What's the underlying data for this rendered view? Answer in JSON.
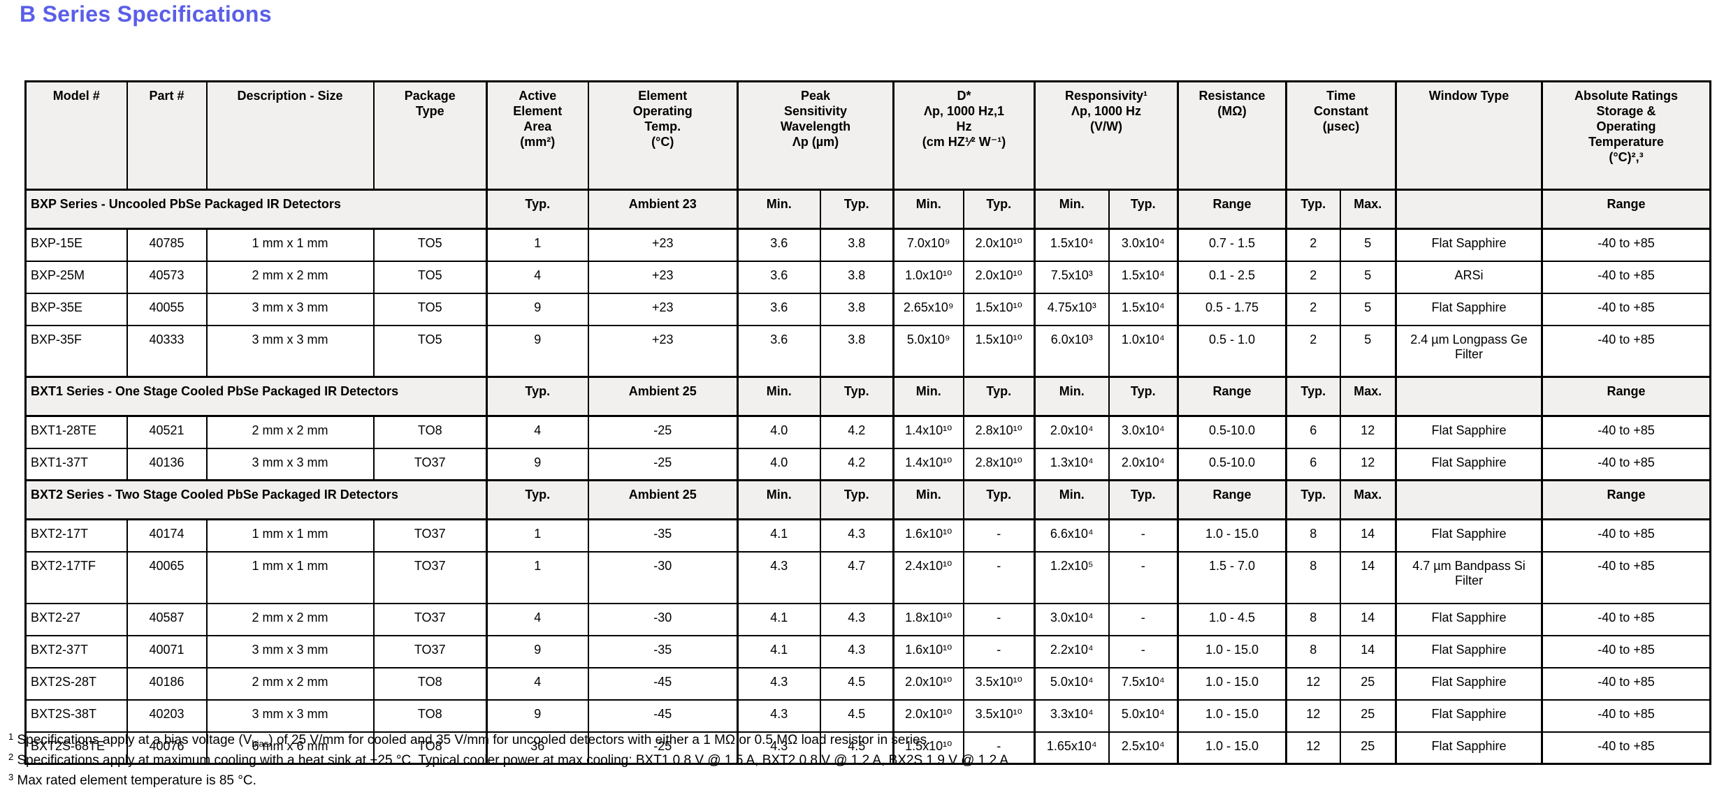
{
  "page_title": "B Series Specifications",
  "accent_color": "#5a5ee8",
  "header_bg_color": "#f1f0ee",
  "table": {
    "columns": [
      {
        "id": "model"
      },
      {
        "id": "part"
      },
      {
        "id": "description"
      },
      {
        "id": "package"
      },
      {
        "id": "active-area"
      },
      {
        "id": "operating-temp"
      },
      {
        "id": "peak-min"
      },
      {
        "id": "peak-typ"
      },
      {
        "id": "dstar-min"
      },
      {
        "id": "dstar-typ"
      },
      {
        "id": "resp-min"
      },
      {
        "id": "resp-typ"
      },
      {
        "id": "resistance"
      },
      {
        "id": "time-typ"
      },
      {
        "id": "time-max"
      },
      {
        "id": "window"
      },
      {
        "id": "ratings"
      }
    ],
    "header_cells": [
      {
        "lines": [
          "Model #"
        ],
        "span": 1
      },
      {
        "lines": [
          "Part #"
        ],
        "span": 1
      },
      {
        "lines": [
          "Description - Size"
        ],
        "span": 1
      },
      {
        "lines": [
          "Package",
          "Type"
        ],
        "span": 1
      },
      {
        "lines": [
          "Active",
          "Element",
          "Area",
          "(mm²)"
        ],
        "span": 1
      },
      {
        "lines": [
          "Element",
          "Operating",
          "Temp.",
          "(°C)"
        ],
        "span": 1
      },
      {
        "lines": [
          "Peak",
          "Sensitivity",
          "Wavelength",
          "Λp (µm)"
        ],
        "span": 2
      },
      {
        "lines": [
          "D*",
          "Λp, 1000 Hz,1",
          "Hz",
          "(cm HZ¹⁄² W⁻¹)"
        ],
        "span": 2
      },
      {
        "lines": [
          "Responsivity¹",
          "Λp, 1000 Hz",
          "(V/W)"
        ],
        "span": 2
      },
      {
        "lines": [
          "Resistance",
          "(MΩ)"
        ],
        "span": 1
      },
      {
        "lines": [
          "Time",
          "Constant",
          "(µsec)"
        ],
        "span": 2
      },
      {
        "lines": [
          "Window Type"
        ],
        "span": 1
      },
      {
        "lines": [
          "Absolute Ratings",
          "Storage &",
          "Operating",
          "Temperature",
          "(°C)²,³"
        ],
        "span": 1
      }
    ],
    "sections": [
      {
        "title": "BXP Series - Uncooled PbSe Packaged IR Detectors",
        "subheader": [
          "Typ.",
          "Ambient 23",
          "Min.",
          "Typ.",
          "Min.",
          "Typ.",
          "Min.",
          "Typ.",
          "Range",
          "Typ.",
          "Max.",
          "",
          "Range"
        ],
        "rows": [
          [
            "BXP-15E",
            "40785",
            "1 mm x 1 mm",
            "TO5",
            "1",
            "+23",
            "3.6",
            "3.8",
            "7.0x10⁹",
            "2.0x10¹⁰",
            "1.5x10⁴",
            "3.0x10⁴",
            "0.7 - 1.5",
            "2",
            "5",
            "Flat Sapphire",
            "-40 to +85"
          ],
          [
            "BXP-25M",
            "40573",
            "2 mm x 2 mm",
            "TO5",
            "4",
            "+23",
            "3.6",
            "3.8",
            "1.0x10¹⁰",
            "2.0x10¹⁰",
            "7.5x10³",
            "1.5x10⁴",
            "0.1 - 2.5",
            "2",
            "5",
            "ARSi",
            "-40 to +85"
          ],
          [
            "BXP-35E",
            "40055",
            "3 mm x 3 mm",
            "TO5",
            "9",
            "+23",
            "3.6",
            "3.8",
            "2.65x10⁹",
            "1.5x10¹⁰",
            "4.75x10³",
            "1.5x10⁴",
            "0.5 - 1.75",
            "2",
            "5",
            "Flat Sapphire",
            "-40 to +85"
          ],
          [
            "BXP-35F",
            "40333",
            "3 mm x 3 mm",
            "TO5",
            "9",
            "+23",
            "3.6",
            "3.8",
            "5.0x10⁹",
            "1.5x10¹⁰",
            "6.0x10³",
            "1.0x10⁴",
            "0.5 - 1.0",
            "2",
            "5",
            "2.4 µm Longpass Ge Filter",
            "-40 to +85"
          ]
        ]
      },
      {
        "title": "BXT1 Series - One Stage Cooled PbSe Packaged IR Detectors",
        "subheader": [
          "Typ.",
          "Ambient 25",
          "Min.",
          "Typ.",
          "Min.",
          "Typ.",
          "Min.",
          "Typ.",
          "Range",
          "Typ.",
          "Max.",
          "",
          "Range"
        ],
        "rows": [
          [
            "BXT1-28TE",
            "40521",
            "2 mm x 2 mm",
            "TO8",
            "4",
            "-25",
            "4.0",
            "4.2",
            "1.4x10¹⁰",
            "2.8x10¹⁰",
            "2.0x10⁴",
            "3.0x10⁴",
            "0.5-10.0",
            "6",
            "12",
            "Flat Sapphire",
            "-40 to +85"
          ],
          [
            "BXT1-37T",
            "40136",
            "3 mm x 3 mm",
            "TO37",
            "9",
            "-25",
            "4.0",
            "4.2",
            "1.4x10¹⁰",
            "2.8x10¹⁰",
            "1.3x10⁴",
            "2.0x10⁴",
            "0.5-10.0",
            "6",
            "12",
            "Flat Sapphire",
            "-40 to +85"
          ]
        ]
      },
      {
        "title": "BXT2 Series - Two Stage Cooled PbSe Packaged IR Detectors",
        "subheader": [
          "Typ.",
          "Ambient 25",
          "Min.",
          "Typ.",
          "Min.",
          "Typ.",
          "Min.",
          "Typ.",
          "Range",
          "Typ.",
          "Max.",
          "",
          "Range"
        ],
        "rows": [
          [
            "BXT2-17T",
            "40174",
            "1 mm x 1 mm",
            "TO37",
            "1",
            "-35",
            "4.1",
            "4.3",
            "1.6x10¹⁰",
            "-",
            "6.6x10⁴",
            "-",
            "1.0 - 15.0",
            "8",
            "14",
            "Flat Sapphire",
            "-40 to +85"
          ],
          [
            "BXT2-17TF",
            "40065",
            "1 mm x 1 mm",
            "TO37",
            "1",
            "-30",
            "4.3",
            "4.7",
            "2.4x10¹⁰",
            "-",
            "1.2x10⁵",
            "-",
            "1.5 - 7.0",
            "8",
            "14",
            "4.7 µm Bandpass Si Filter",
            "-40 to +85"
          ],
          [
            "BXT2-27",
            "40587",
            "2 mm x 2 mm",
            "TO37",
            "4",
            "-30",
            "4.1",
            "4.3",
            "1.8x10¹⁰",
            "-",
            "3.0x10⁴",
            "-",
            "1.0 - 4.5",
            "8",
            "14",
            "Flat Sapphire",
            "-40 to +85"
          ],
          [
            "BXT2-37T",
            "40071",
            "3 mm x 3 mm",
            "TO37",
            "9",
            "-35",
            "4.1",
            "4.3",
            "1.6x10¹⁰",
            "-",
            "2.2x10⁴",
            "-",
            "1.0 - 15.0",
            "8",
            "14",
            "Flat Sapphire",
            "-40 to +85"
          ],
          [
            "BXT2S-28T",
            "40186",
            "2 mm x 2 mm",
            "TO8",
            "4",
            "-45",
            "4.3",
            "4.5",
            "2.0x10¹⁰",
            "3.5x10¹⁰",
            "5.0x10⁴",
            "7.5x10⁴",
            "1.0 - 15.0",
            "12",
            "25",
            "Flat Sapphire",
            "-40 to +85"
          ],
          [
            "BXT2S-38T",
            "40203",
            "3 mm x 3 mm",
            "TO8",
            "9",
            "-45",
            "4.3",
            "4.5",
            "2.0x10¹⁰",
            "3.5x10¹⁰",
            "3.3x10⁴",
            "5.0x10⁴",
            "1.0 - 15.0",
            "12",
            "25",
            "Flat Sapphire",
            "-40 to +85"
          ],
          [
            "BXT2S-68TE",
            "40076",
            "6 mm x 6 mm",
            "TO8",
            "36",
            "-25",
            "4.3",
            "4.5",
            "1.5x10¹⁰",
            "-",
            "1.65x10⁴",
            "2.5x10⁴",
            "1.0 - 15.0",
            "12",
            "25",
            "Flat Sapphire",
            "-40 to +85"
          ]
        ]
      }
    ]
  },
  "footnotes": [
    {
      "segments": [
        {
          "t": "1",
          "v": "sup"
        },
        {
          "t": " Specifications apply at a bias voltage (V"
        },
        {
          "t": "bias",
          "v": "sub"
        },
        {
          "t": ") of 25 V/mm for cooled and 35 V/mm for uncooled detectors with either a 1 MΩ or 0.5 MΩ load resistor in series."
        }
      ]
    },
    {
      "segments": [
        {
          "t": "2",
          "v": "sup"
        },
        {
          "t": " Specifications apply at maximum cooling with a heat sink at +25 °C. Typical cooler power at max cooling: BXT1 0.8 V @ 1.5 A, BXT2 0.8 V @ 1.2 A, BX2S 1.9 V @ 1.2 A."
        }
      ]
    },
    {
      "segments": [
        {
          "t": "3",
          "v": "sup"
        },
        {
          "t": " Max rated element temperature is 85 °C."
        }
      ]
    }
  ]
}
